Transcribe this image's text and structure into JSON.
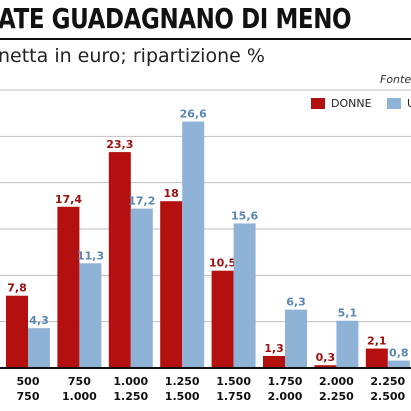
{
  "header": {
    "title": "ATE GUADAGNANO DI MENO",
    "subtitle": "netta in euro; ripartizione %",
    "source": "Fonte"
  },
  "colors": {
    "donne": "#b3100f",
    "uomini": "#8fb3d6",
    "grid": "#bfbfbf",
    "axis": "#111111"
  },
  "chart_data": {
    "type": "bar",
    "title": "ATE GUADAGNANO DI MENO",
    "subtitle": "netta in euro; ripartizione %",
    "categories": [
      [
        "500",
        "750"
      ],
      [
        "750",
        "1.000"
      ],
      [
        "1.000",
        "1.250"
      ],
      [
        "1.250",
        "1.500"
      ],
      [
        "1.500",
        "1.750"
      ],
      [
        "1.750",
        "2.000"
      ],
      [
        "2.000",
        "2.250"
      ],
      [
        "2.250",
        "2.500"
      ],
      [
        "",
        ""
      ]
    ],
    "series": [
      {
        "name": "DONNE",
        "values": [
          7.8,
          17.4,
          23.3,
          18,
          10.5,
          1.3,
          0.3,
          2.1,
          null
        ],
        "labels": [
          "7,8",
          "17,4",
          "23,3",
          "18",
          "10,5",
          "1,3",
          "0,3",
          "2,1",
          ""
        ]
      },
      {
        "name": "U",
        "values": [
          4.3,
          11.3,
          17.2,
          26.6,
          15.6,
          6.3,
          5.1,
          0.8,
          null
        ],
        "labels": [
          "4,3",
          "11,3",
          "17,2",
          "26,6",
          "15,6",
          "6,3",
          "5,1",
          "0,8",
          ""
        ]
      }
    ],
    "ylim": [
      0,
      30
    ],
    "grid": true,
    "legend": "top-right"
  }
}
